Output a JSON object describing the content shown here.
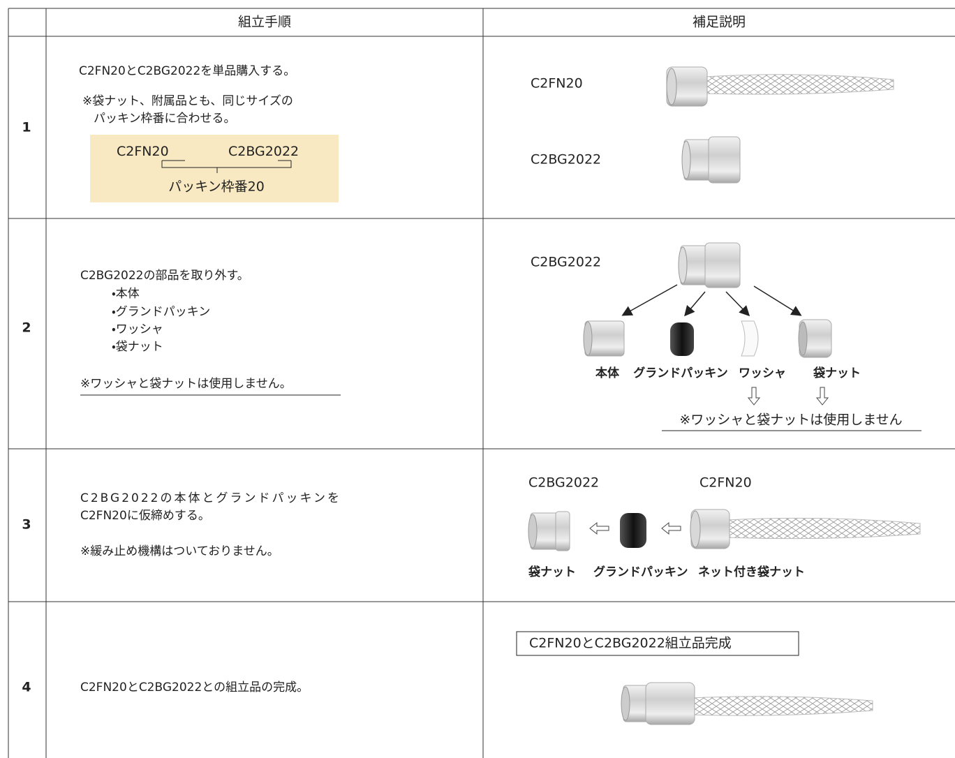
{
  "table": {
    "headers": [
      "組立手順",
      "補足説明"
    ],
    "rows": [
      {
        "step": "1",
        "instructions": [
          "C2FN20とC2BG2022を単品購入する。",
          "※袋ナット、附属品とも、同じサイズの",
          "パッキン枠番に合わせる。"
        ],
        "highlight": {
          "first": [
            "C2FN",
            "20"
          ],
          "second": [
            "C2BG",
            "20",
            "22"
          ],
          "label": "パッキン枠番20"
        },
        "diagram": {
          "labels": [
            "C2FN20",
            "C2BG2022"
          ]
        }
      },
      {
        "step": "2",
        "instructions": [
          "C2BG2022の部品を取り外す。"
        ],
        "list": [
          "・本体",
          "・グランドパッキン",
          "・ワッシャ",
          "・袋ナット"
        ],
        "note": "※ワッシャと袋ナットは使用しません。",
        "diagram": {
          "title": "C2BG2022",
          "parts": [
            "本体",
            "グランドパッキン",
            "ワッシャ",
            "袋ナット"
          ],
          "note": "※ワッシャと袋ナットは使用しません"
        }
      },
      {
        "step": "3",
        "instructions": [
          "C2BG2022の本体とグランドパッキンを",
          "C2FN20に仮締めする。"
        ],
        "note": "※緩み止め機構はついておりません。",
        "diagram": {
          "labels": [
            "C2BG2022",
            "C2FN20"
          ],
          "parts": [
            "袋ナット",
            "グランドパッキン",
            "ネット付き袋ナット"
          ]
        }
      },
      {
        "step": "4",
        "instructions": [
          "C2FN20とC2BG2022との組立品の完成。"
        ],
        "diagram": {
          "title": "C2FN20とC2BG2022組立品完成"
        }
      }
    ]
  }
}
